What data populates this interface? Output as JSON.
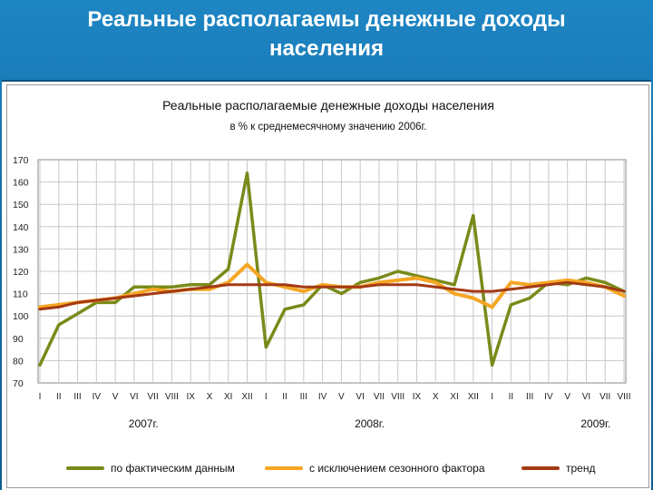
{
  "slide": {
    "title_line1": "Реальные располагаемы денежные доходы",
    "title_line2": "населения"
  },
  "chart_data": {
    "type": "line",
    "title": "Реальные располагаемые денежные доходы населения",
    "subtitle": "в % к среднемесячному значению 2006г.",
    "ylim": [
      70,
      170
    ],
    "yticks": [
      70,
      80,
      90,
      100,
      110,
      120,
      130,
      140,
      150,
      160,
      170
    ],
    "grid": true,
    "legend_position": "bottom",
    "categories": [
      "I",
      "II",
      "III",
      "IV",
      "V",
      "VI",
      "VII",
      "VIII",
      "IX",
      "X",
      "XI",
      "XII",
      "I",
      "II",
      "III",
      "IV",
      "V",
      "VI",
      "VII",
      "VIII",
      "IX",
      "X",
      "XI",
      "XII",
      "I",
      "II",
      "III",
      "IV",
      "V",
      "VI",
      "VII",
      "VIII"
    ],
    "year_labels": [
      {
        "label": "2007г.",
        "center_index": 5.5
      },
      {
        "label": "2008г.",
        "center_index": 17.5
      },
      {
        "label": "2009г.",
        "center_index": 29.5
      }
    ],
    "series": [
      {
        "name": "по фактическим данным",
        "color": "#7a8a1a",
        "values": [
          78,
          96,
          101,
          106,
          106,
          113,
          113,
          113,
          114,
          114,
          121,
          164,
          86,
          103,
          105,
          114,
          110,
          115,
          117,
          120,
          118,
          116,
          114,
          145,
          78,
          105,
          108,
          115,
          114,
          117,
          115,
          111
        ]
      },
      {
        "name": "с исключением сезонного фактора",
        "color": "#f5a623",
        "values": [
          104,
          105,
          106,
          107,
          108,
          110,
          112,
          111,
          112,
          112,
          115,
          123,
          115,
          113,
          111,
          114,
          113,
          113,
          115,
          116,
          117,
          115,
          110,
          108,
          104,
          115,
          114,
          115,
          116,
          115,
          113,
          109
        ]
      },
      {
        "name": "тренд",
        "color": "#a33a14",
        "values": [
          103,
          104,
          106,
          107,
          108,
          109,
          110,
          111,
          112,
          113,
          114,
          114,
          114,
          114,
          113,
          113,
          113,
          113,
          114,
          114,
          114,
          113,
          112,
          111,
          111,
          112,
          113,
          114,
          115,
          114,
          113,
          111
        ]
      }
    ]
  }
}
